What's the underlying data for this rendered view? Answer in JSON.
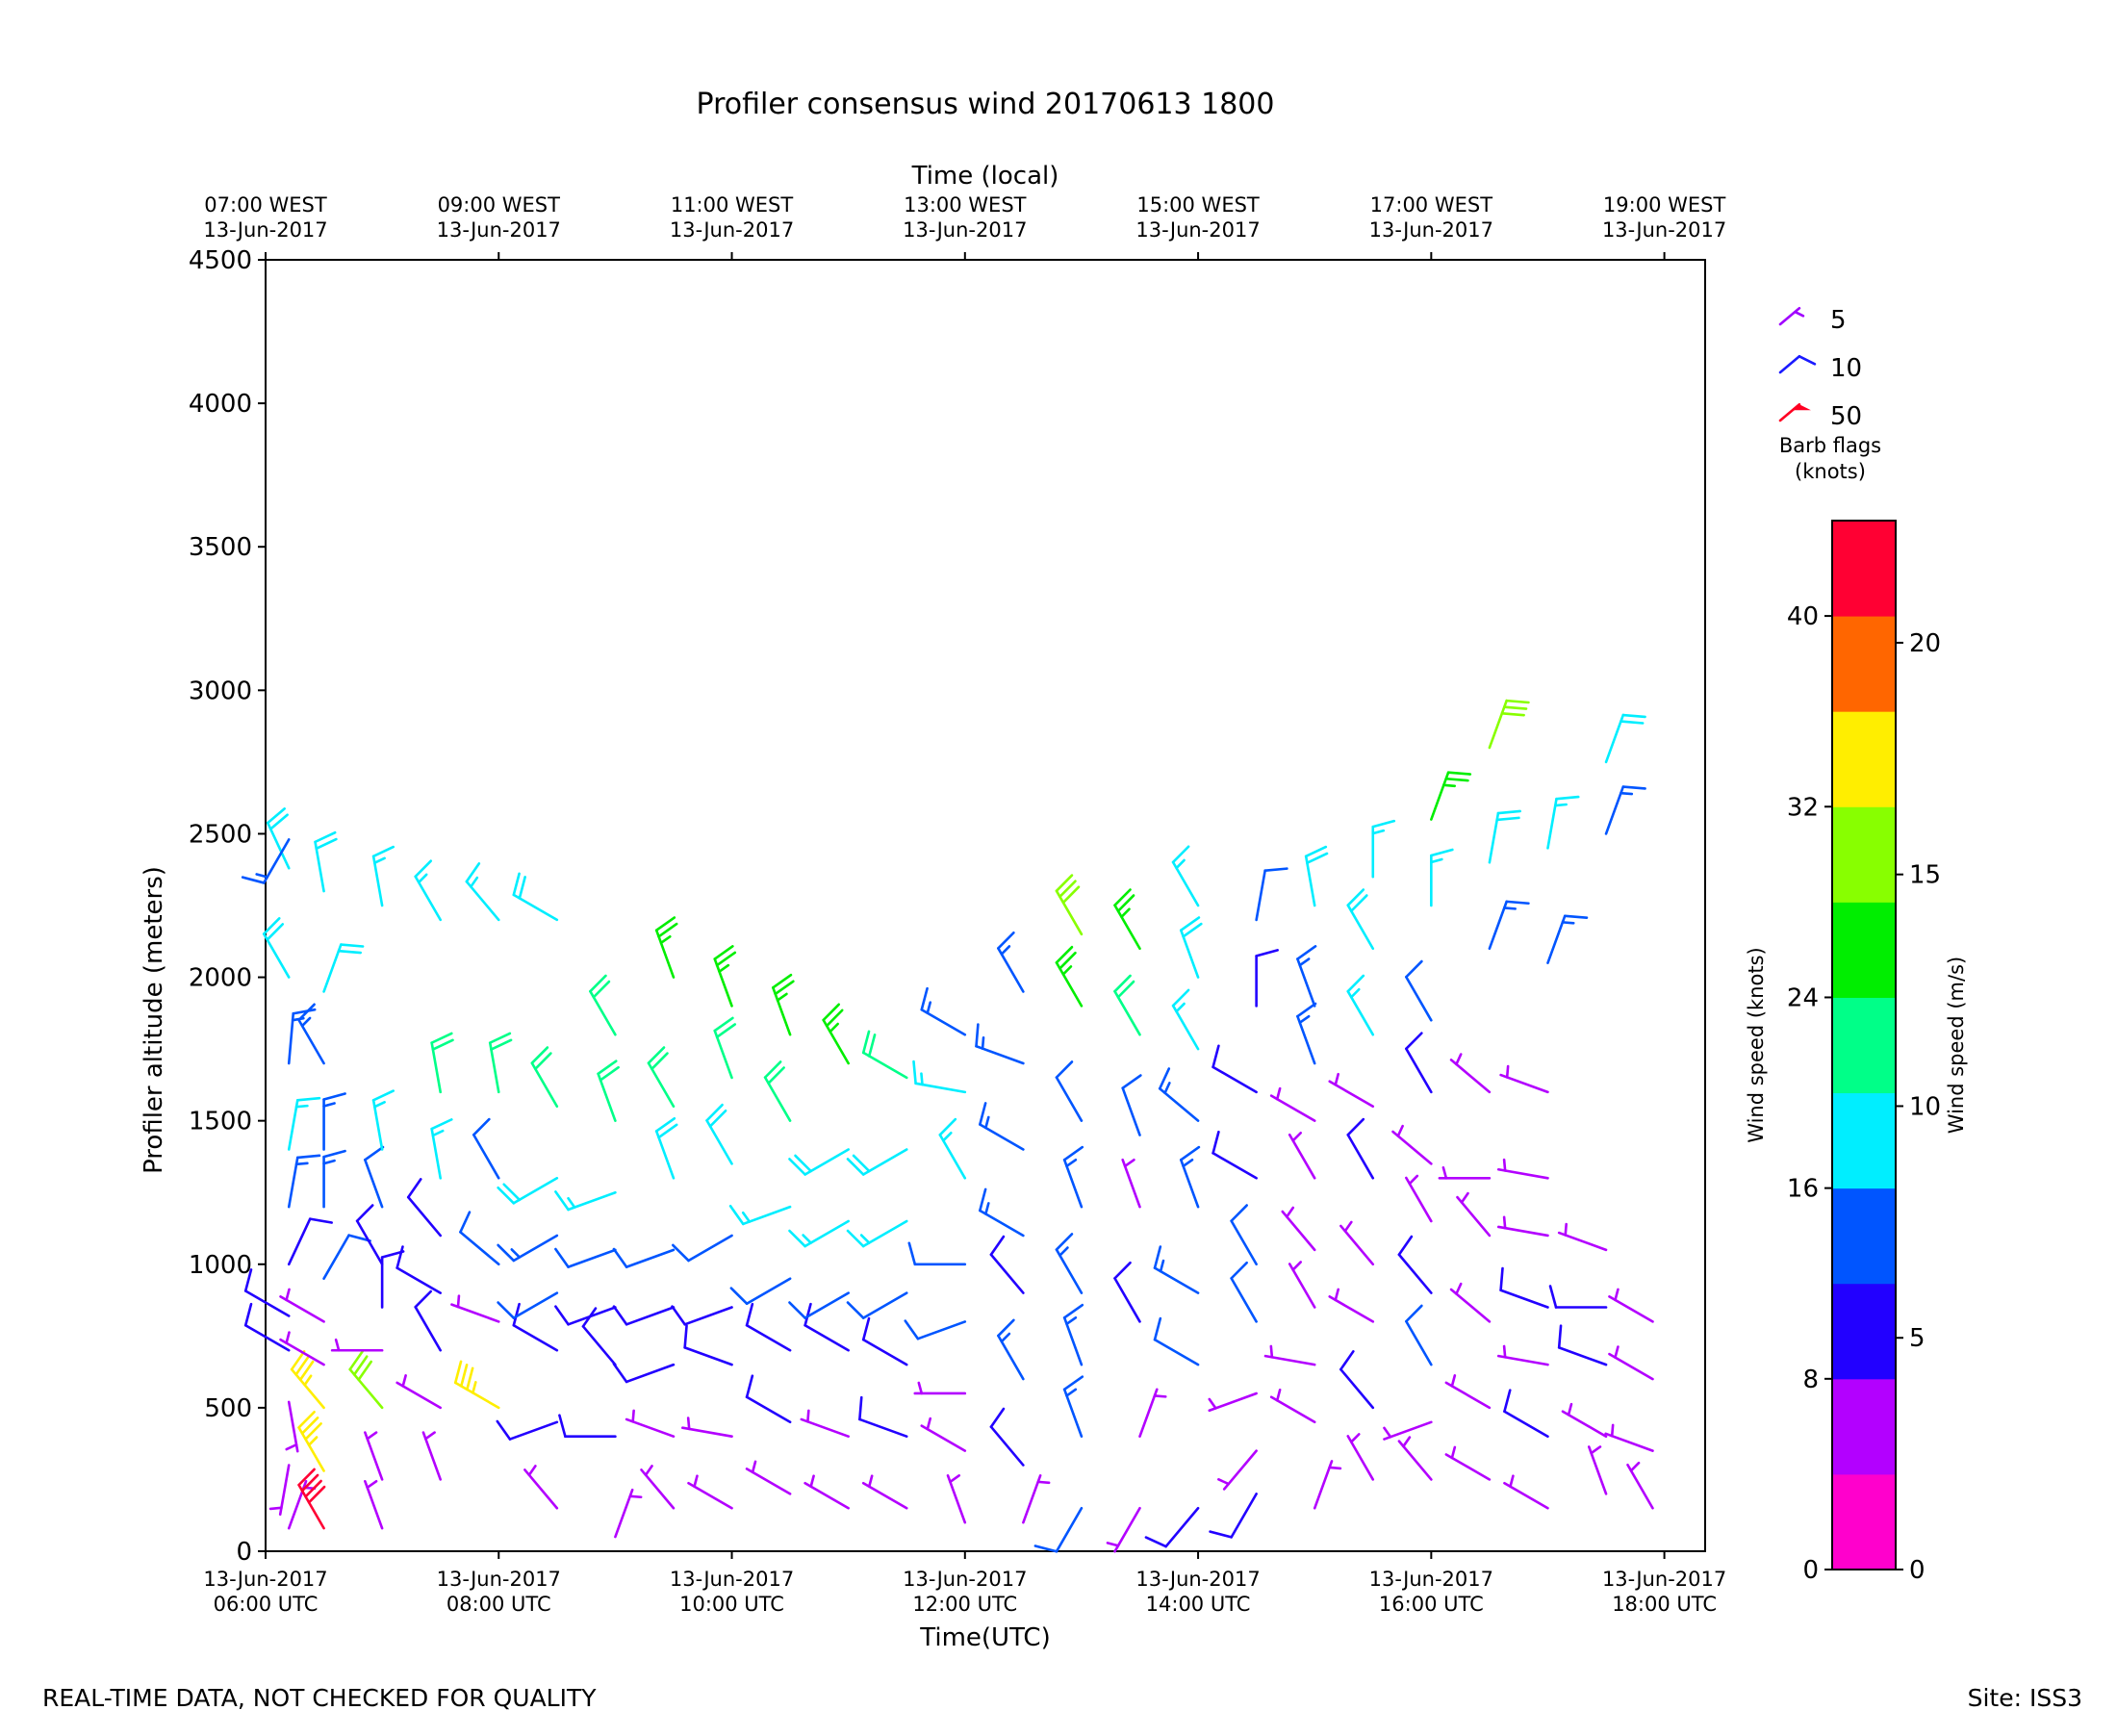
{
  "chart_data": {
    "type": "wind-barb-profile",
    "title": "Profiler consensus wind 20170613 1800",
    "top_axis_title": "Time (local)",
    "xlabel": "Time(UTC)",
    "ylabel": "Profiler altitude (meters)",
    "ylim": [
      0,
      4500
    ],
    "yticks": [
      0,
      500,
      1000,
      1500,
      2000,
      2500,
      3000,
      3500,
      4000,
      4500
    ],
    "xlim_hours_utc": [
      6,
      18.35
    ],
    "x_ticks_utc": [
      {
        "hour": 6,
        "line1": "13-Jun-2017",
        "line2": "06:00 UTC"
      },
      {
        "hour": 8,
        "line1": "13-Jun-2017",
        "line2": "08:00 UTC"
      },
      {
        "hour": 10,
        "line1": "13-Jun-2017",
        "line2": "10:00 UTC"
      },
      {
        "hour": 12,
        "line1": "13-Jun-2017",
        "line2": "12:00 UTC"
      },
      {
        "hour": 14,
        "line1": "13-Jun-2017",
        "line2": "14:00 UTC"
      },
      {
        "hour": 16,
        "line1": "13-Jun-2017",
        "line2": "16:00 UTC"
      },
      {
        "hour": 18,
        "line1": "13-Jun-2017",
        "line2": "18:00 UTC"
      }
    ],
    "x_ticks_local": [
      {
        "hour": 6,
        "line1": "07:00 WEST",
        "line2": "13-Jun-2017"
      },
      {
        "hour": 8,
        "line1": "09:00 WEST",
        "line2": "13-Jun-2017"
      },
      {
        "hour": 10,
        "line1": "11:00 WEST",
        "line2": "13-Jun-2017"
      },
      {
        "hour": 12,
        "line1": "13:00 WEST",
        "line2": "13-Jun-2017"
      },
      {
        "hour": 14,
        "line1": "15:00 WEST",
        "line2": "13-Jun-2017"
      },
      {
        "hour": 16,
        "line1": "17:00 WEST",
        "line2": "13-Jun-2017"
      },
      {
        "hour": 18,
        "line1": "19:00 WEST",
        "line2": "13-Jun-2017"
      }
    ],
    "barb_legend": {
      "title_line1": "Barb flags",
      "title_line2": "(knots)",
      "items": [
        {
          "label": "5",
          "speed_kt": 5,
          "color": "#a000ff"
        },
        {
          "label": "10",
          "speed_kt": 10,
          "color": "#1a1aff"
        },
        {
          "label": "50",
          "speed_kt": 50,
          "color": "#ff0022"
        }
      ]
    },
    "colorbar": {
      "label_knots": "Wind speed (knots)",
      "label_ms": "Wind speed (m/s)",
      "range_knots": [
        0,
        44
      ],
      "bounds_knots": [
        0,
        4,
        8,
        12,
        16,
        20,
        24,
        28,
        32,
        36,
        40,
        44
      ],
      "colors": [
        "#ff00cc",
        "#b300ff",
        "#2200ff",
        "#0055ff",
        "#00eeff",
        "#00ff88",
        "#00ee00",
        "#88ff00",
        "#ffee00",
        "#ff6600",
        "#ff0033"
      ],
      "knot_ticks": [
        0,
        8,
        16,
        24,
        32,
        40
      ],
      "ms_ticks": [
        0,
        5,
        10,
        15,
        20
      ]
    },
    "series": [
      {
        "time": 6.2,
        "obs": [
          [
            80,
            5,
            20
          ],
          [
            300,
            5,
            190
          ],
          [
            520,
            5,
            170
          ],
          [
            700,
            9,
            300
          ],
          [
            820,
            8,
            300
          ],
          [
            1000,
            10,
            25
          ],
          [
            1200,
            13,
            10
          ],
          [
            1400,
            16,
            10
          ],
          [
            1700,
            13,
            5
          ],
          [
            2000,
            18,
            330
          ],
          [
            2380,
            19,
            335
          ],
          [
            2480,
            13,
            210
          ]
        ]
      },
      {
        "time": 6.5,
        "obs": [
          [
            80,
            40,
            330
          ],
          [
            280,
            35,
            330
          ],
          [
            500,
            35,
            320
          ],
          [
            650,
            6,
            300
          ],
          [
            800,
            6,
            300
          ],
          [
            950,
            12,
            30
          ],
          [
            1200,
            13,
            0
          ],
          [
            1400,
            14,
            0
          ],
          [
            1700,
            14,
            330
          ],
          [
            1950,
            19,
            20
          ],
          [
            2300,
            18,
            350
          ]
        ]
      },
      {
        "time": 7.0,
        "obs": [
          [
            80,
            7,
            340
          ],
          [
            250,
            6,
            340
          ],
          [
            500,
            28,
            320
          ],
          [
            700,
            7,
            270
          ],
          [
            850,
            9,
            0
          ],
          [
            1000,
            11,
            330
          ],
          [
            1200,
            12,
            340
          ],
          [
            1400,
            16,
            350
          ],
          [
            2250,
            17,
            350
          ]
        ]
      },
      {
        "time": 7.5,
        "obs": [
          [
            250,
            6,
            340
          ],
          [
            500,
            6,
            300
          ],
          [
            700,
            9,
            330
          ],
          [
            900,
            8,
            300
          ],
          [
            1100,
            11,
            320
          ],
          [
            1300,
            16,
            350
          ],
          [
            1600,
            22,
            350
          ],
          [
            2200,
            17,
            330
          ]
        ]
      },
      {
        "time": 8.0,
        "obs": [
          [
            500,
            33,
            300
          ],
          [
            800,
            7,
            290
          ],
          [
            1000,
            12,
            310
          ],
          [
            1300,
            12,
            330
          ],
          [
            1600,
            21,
            350
          ],
          [
            2200,
            16,
            320
          ]
        ]
      },
      {
        "time": 8.5,
        "obs": [
          [
            150,
            6,
            320
          ],
          [
            450,
            8,
            250
          ],
          [
            700,
            9,
            300
          ],
          [
            900,
            12,
            240
          ],
          [
            1100,
            13,
            240
          ],
          [
            1300,
            18,
            240
          ],
          [
            1550,
            21,
            330
          ],
          [
            2200,
            18,
            300
          ]
        ]
      },
      {
        "time": 9.0,
        "obs": [
          [
            50,
            6,
            20
          ],
          [
            400,
            9,
            270
          ],
          [
            650,
            10,
            320
          ],
          [
            850,
            11,
            250
          ],
          [
            1050,
            12,
            250
          ],
          [
            1250,
            16,
            250
          ],
          [
            1500,
            21,
            340
          ],
          [
            1800,
            21,
            330
          ]
        ]
      },
      {
        "time": 9.5,
        "obs": [
          [
            150,
            6,
            320
          ],
          [
            400,
            7,
            290
          ],
          [
            650,
            8,
            250
          ],
          [
            850,
            8,
            250
          ],
          [
            1050,
            12,
            250
          ],
          [
            1300,
            18,
            340
          ],
          [
            1550,
            22,
            330
          ],
          [
            2000,
            27,
            340
          ]
        ]
      },
      {
        "time": 10.0,
        "obs": [
          [
            150,
            6,
            300
          ],
          [
            400,
            7,
            280
          ],
          [
            650,
            8,
            290
          ],
          [
            850,
            10,
            250
          ],
          [
            1100,
            12,
            240
          ],
          [
            1350,
            18,
            330
          ],
          [
            1650,
            22,
            340
          ],
          [
            1900,
            24,
            340
          ]
        ]
      },
      {
        "time": 10.5,
        "obs": [
          [
            200,
            6,
            300
          ],
          [
            450,
            8,
            300
          ],
          [
            700,
            9,
            300
          ],
          [
            950,
            12,
            240
          ],
          [
            1200,
            16,
            250
          ],
          [
            1500,
            22,
            330
          ],
          [
            1800,
            24,
            340
          ]
        ]
      },
      {
        "time": 11.0,
        "obs": [
          [
            150,
            6,
            300
          ],
          [
            400,
            7,
            290
          ],
          [
            700,
            8,
            300
          ],
          [
            900,
            12,
            240
          ],
          [
            1150,
            16,
            240
          ],
          [
            1400,
            18,
            240
          ],
          [
            1700,
            25,
            330
          ]
        ]
      },
      {
        "time": 11.5,
        "obs": [
          [
            150,
            6,
            300
          ],
          [
            400,
            8,
            290
          ],
          [
            650,
            8,
            300
          ],
          [
            900,
            12,
            240
          ],
          [
            1150,
            16,
            240
          ],
          [
            1400,
            18,
            240
          ],
          [
            1650,
            22,
            300
          ]
        ]
      },
      {
        "time": 12.0,
        "obs": [
          [
            100,
            5,
            340
          ],
          [
            350,
            6,
            300
          ],
          [
            550,
            6,
            270
          ],
          [
            800,
            12,
            250
          ],
          [
            1000,
            12,
            270
          ],
          [
            1300,
            17,
            330
          ],
          [
            1600,
            17,
            280
          ],
          [
            1800,
            14,
            300
          ]
        ]
      },
      {
        "time": 12.5,
        "obs": [
          [
            100,
            6,
            20
          ],
          [
            300,
            10,
            320
          ],
          [
            600,
            13,
            330
          ],
          [
            900,
            9,
            320
          ],
          [
            1100,
            13,
            300
          ],
          [
            1400,
            13,
            300
          ],
          [
            1700,
            13,
            290
          ],
          [
            1950,
            14,
            330
          ]
        ]
      },
      {
        "time": 13.0,
        "obs": [
          [
            150,
            12,
            210
          ],
          [
            400,
            14,
            340
          ],
          [
            650,
            14,
            340
          ],
          [
            900,
            14,
            330
          ],
          [
            1200,
            13,
            340
          ],
          [
            1500,
            12,
            330
          ],
          [
            1900,
            26,
            330
          ],
          [
            2150,
            28,
            330
          ]
        ]
      },
      {
        "time": 13.5,
        "obs": [
          [
            150,
            5,
            210
          ],
          [
            400,
            6,
            20
          ],
          [
            800,
            9,
            330
          ],
          [
            1200,
            5,
            340
          ],
          [
            1450,
            12,
            340
          ],
          [
            1800,
            20,
            330
          ],
          [
            2100,
            24,
            330
          ]
        ]
      },
      {
        "time": 14.0,
        "obs": [
          [
            150,
            10,
            220
          ],
          [
            650,
            12,
            300
          ],
          [
            900,
            13,
            300
          ],
          [
            1200,
            13,
            340
          ],
          [
            1500,
            13,
            310
          ],
          [
            1750,
            16,
            330
          ],
          [
            2000,
            18,
            340
          ],
          [
            2250,
            16,
            330
          ]
        ]
      },
      {
        "time": 14.5,
        "obs": [
          [
            200,
            9,
            210
          ],
          [
            350,
            6,
            220
          ],
          [
            550,
            7,
            250
          ],
          [
            800,
            12,
            330
          ],
          [
            1000,
            12,
            330
          ],
          [
            1300,
            10,
            300
          ],
          [
            1600,
            8,
            300
          ],
          [
            1900,
            10,
            0
          ],
          [
            2200,
            12,
            10
          ]
        ]
      },
      {
        "time": 15.0,
        "obs": [
          [
            150,
            5,
            20
          ],
          [
            450,
            5,
            300
          ],
          [
            650,
            7,
            280
          ],
          [
            850,
            6,
            330
          ],
          [
            1050,
            5,
            320
          ],
          [
            1300,
            6,
            330
          ],
          [
            1500,
            6,
            300
          ],
          [
            1700,
            13,
            340
          ],
          [
            1900,
            14,
            340
          ],
          [
            2250,
            18,
            350
          ]
        ]
      },
      {
        "time": 15.5,
        "obs": [
          [
            250,
            6,
            330
          ],
          [
            500,
            8,
            320
          ],
          [
            800,
            7,
            300
          ],
          [
            1000,
            7,
            320
          ],
          [
            1300,
            9,
            330
          ],
          [
            1550,
            7,
            300
          ],
          [
            1800,
            16,
            330
          ],
          [
            2100,
            18,
            330
          ],
          [
            2350,
            17,
            0
          ]
        ]
      },
      {
        "time": 16.0,
        "obs": [
          [
            250,
            6,
            320
          ],
          [
            450,
            6,
            250
          ],
          [
            650,
            12,
            330
          ],
          [
            900,
            10,
            320
          ],
          [
            1150,
            5,
            330
          ],
          [
            1350,
            6,
            310
          ],
          [
            1600,
            8,
            330
          ],
          [
            1850,
            12,
            330
          ],
          [
            2250,
            17,
            0
          ],
          [
            2550,
            26,
            20
          ]
        ]
      },
      {
        "time": 16.5,
        "obs": [
          [
            250,
            6,
            300
          ],
          [
            500,
            7,
            300
          ],
          [
            800,
            7,
            310
          ],
          [
            1100,
            6,
            320
          ],
          [
            1300,
            6,
            270
          ],
          [
            1600,
            5,
            310
          ],
          [
            2100,
            13,
            20
          ],
          [
            2400,
            18,
            10
          ],
          [
            2800,
            30,
            20
          ]
        ]
      },
      {
        "time": 17.0,
        "obs": [
          [
            150,
            5,
            300
          ],
          [
            400,
            8,
            300
          ],
          [
            650,
            7,
            280
          ],
          [
            850,
            9,
            290
          ],
          [
            1100,
            6,
            280
          ],
          [
            1300,
            6,
            280
          ],
          [
            1600,
            6,
            290
          ],
          [
            2050,
            13,
            20
          ],
          [
            2450,
            16,
            10
          ]
        ]
      },
      {
        "time": 17.5,
        "obs": [
          [
            200,
            5,
            340
          ],
          [
            400,
            6,
            300
          ],
          [
            650,
            10,
            290
          ],
          [
            850,
            9,
            270
          ],
          [
            1050,
            6,
            290
          ],
          [
            2500,
            14,
            20
          ],
          [
            2750,
            18,
            20
          ]
        ]
      },
      {
        "time": 17.9,
        "obs": [
          [
            150,
            5,
            330
          ],
          [
            350,
            7,
            290
          ],
          [
            600,
            6,
            300
          ],
          [
            800,
            6,
            300
          ]
        ]
      }
    ]
  },
  "footer": {
    "left_note": "REAL-TIME DATA, NOT CHECKED FOR QUALITY",
    "site": "Site: ISS3"
  }
}
